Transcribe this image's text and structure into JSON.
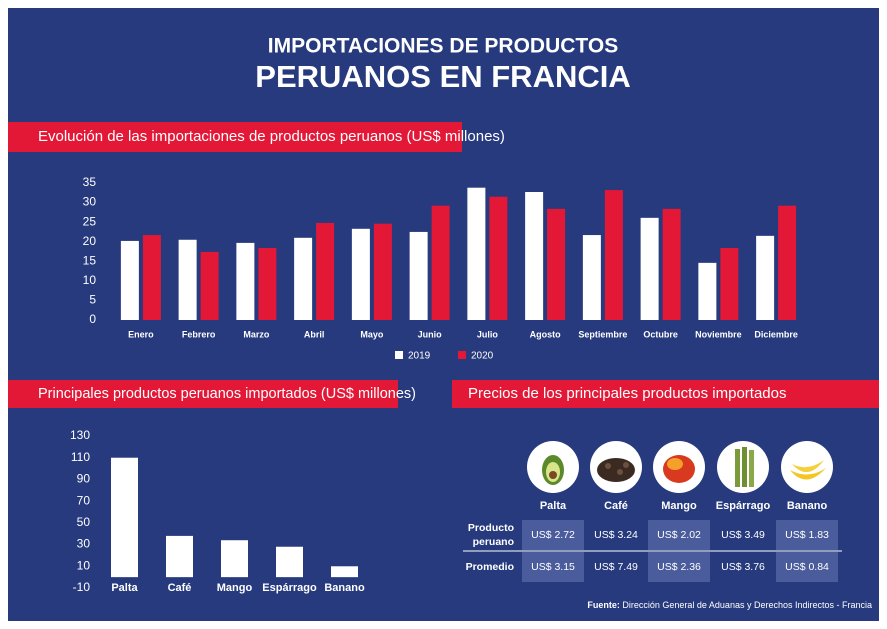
{
  "header": {
    "line1": "IMPORTACIONES DE PRODUCTOS",
    "line2": "PERUANOS EN FRANCIA"
  },
  "chart_data": [
    {
      "type": "bar",
      "title": "Evolución de las importaciones de productos peruanos (US$ millones)",
      "categories": [
        "Enero",
        "Febrero",
        "Marzo",
        "Abril",
        "Mayo",
        "Junio",
        "Julio",
        "Agosto",
        "Septiembre",
        "Octubre",
        "Noviembre",
        "Diciembre"
      ],
      "series": [
        {
          "name": "2019",
          "color": "#ffffff",
          "values": [
            20.2,
            20.5,
            19.7,
            21.0,
            23.3,
            22.5,
            33.8,
            32.7,
            21.7,
            26.1,
            14.6,
            21.5
          ]
        },
        {
          "name": "2020",
          "color": "#e31837",
          "values": [
            21.7,
            17.4,
            18.4,
            24.8,
            24.6,
            29.2,
            31.5,
            28.4,
            33.2,
            28.4,
            18.4,
            29.2
          ]
        }
      ],
      "ylim": [
        0,
        35
      ],
      "yticks": [
        0,
        5,
        10,
        15,
        20,
        25,
        30,
        35
      ],
      "legend": "bottom"
    },
    {
      "type": "bar",
      "title": "Principales productos peruanos importados (US$ millones)",
      "categories": [
        "Palta",
        "Café",
        "Mango",
        "Espárrago",
        "Banano"
      ],
      "values": [
        110,
        38,
        34,
        28,
        10
      ],
      "color": "#ffffff",
      "ylim": [
        -10,
        130
      ],
      "yticks": [
        -10,
        10,
        30,
        50,
        70,
        90,
        110,
        130
      ]
    }
  ],
  "table": {
    "title": "Precios de los principales productos importados",
    "columns": [
      "Palta",
      "Café",
      "Mango",
      "Espárrago",
      "Banano"
    ],
    "rows": [
      {
        "label": "Producto peruano",
        "cells": [
          "US$ 2.72",
          "US$ 3.24",
          "US$ 2.02",
          "US$ 3.49",
          "US$ 1.83"
        ]
      },
      {
        "label": "Promedio",
        "cells": [
          "US$ 3.15",
          "US$ 7.49",
          "US$ 2.36",
          "US$ 3.76",
          "US$ 0.84"
        ]
      }
    ]
  },
  "source": {
    "label": "Fuente:",
    "text": "Dirección General de Aduanas y Derechos Indirectos - Francia"
  }
}
